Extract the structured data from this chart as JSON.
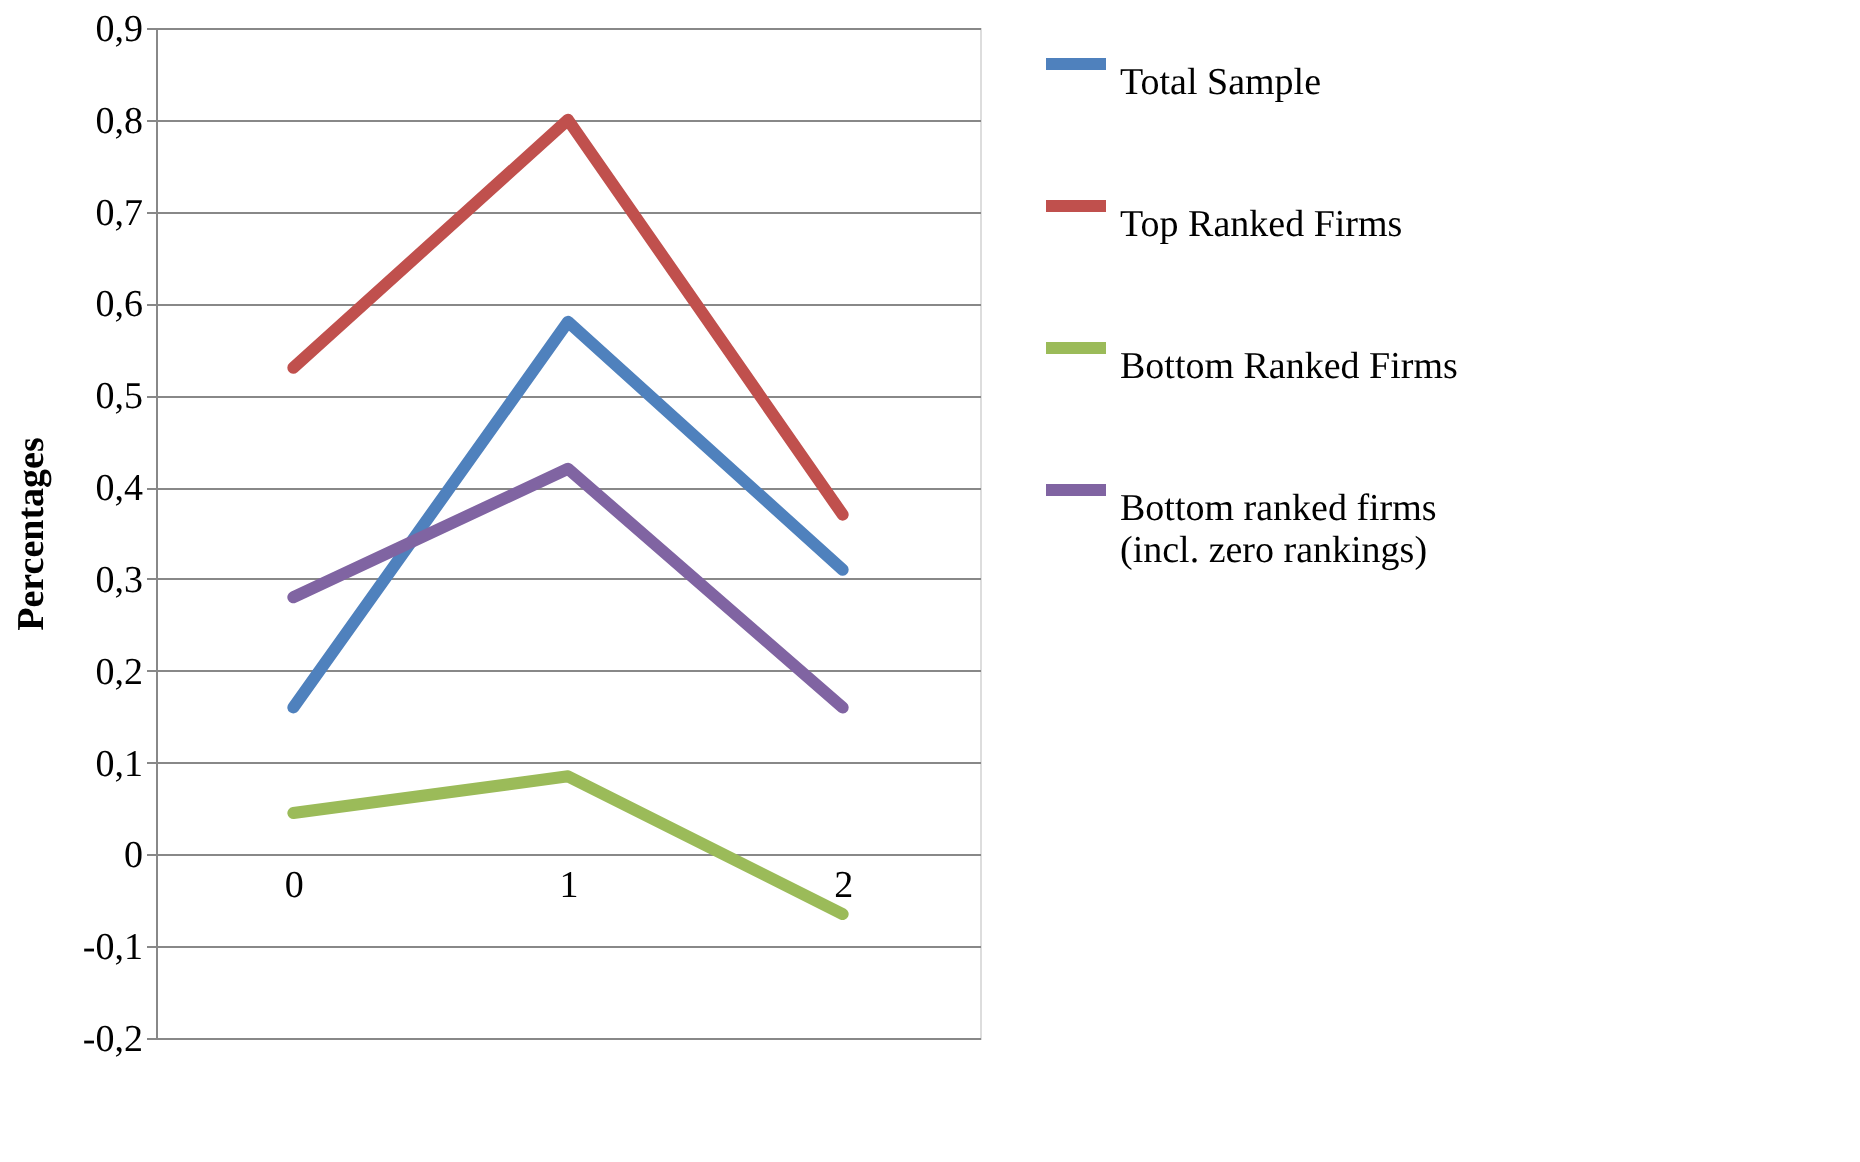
{
  "chart_data": {
    "type": "line",
    "ylabel": "Percentages",
    "categories": [
      "0",
      "1",
      "2"
    ],
    "series": [
      {
        "name": "Total Sample",
        "color": "#4f81bd",
        "values": [
          0.16,
          0.58,
          0.31
        ]
      },
      {
        "name": "Top Ranked Firms",
        "color": "#c0504d",
        "values": [
          0.53,
          0.8,
          0.37
        ]
      },
      {
        "name": "Bottom Ranked Firms",
        "color": "#9bbb59",
        "values": [
          0.045,
          0.085,
          -0.065
        ]
      },
      {
        "name": "Bottom ranked firms\n(incl. zero rankings)",
        "color": "#8064a2",
        "values": [
          0.28,
          0.42,
          0.16
        ]
      }
    ],
    "ylim": [
      -0.2,
      0.9
    ],
    "yticks": [
      {
        "value": -0.2,
        "label": "-0,2"
      },
      {
        "value": -0.1,
        "label": "-0,1"
      },
      {
        "value": 0,
        "label": "0"
      },
      {
        "value": 0.1,
        "label": "0,1"
      },
      {
        "value": 0.2,
        "label": "0,2"
      },
      {
        "value": 0.3,
        "label": "0,3"
      },
      {
        "value": 0.4,
        "label": "0,4"
      },
      {
        "value": 0.5,
        "label": "0,5"
      },
      {
        "value": 0.6,
        "label": "0,6"
      },
      {
        "value": 0.7,
        "label": "0,7"
      },
      {
        "value": 0.8,
        "label": "0,8"
      },
      {
        "value": 0.9,
        "label": "0,9"
      }
    ],
    "grid": "y",
    "legend": "right",
    "marker": "none",
    "line_style": "solid"
  }
}
